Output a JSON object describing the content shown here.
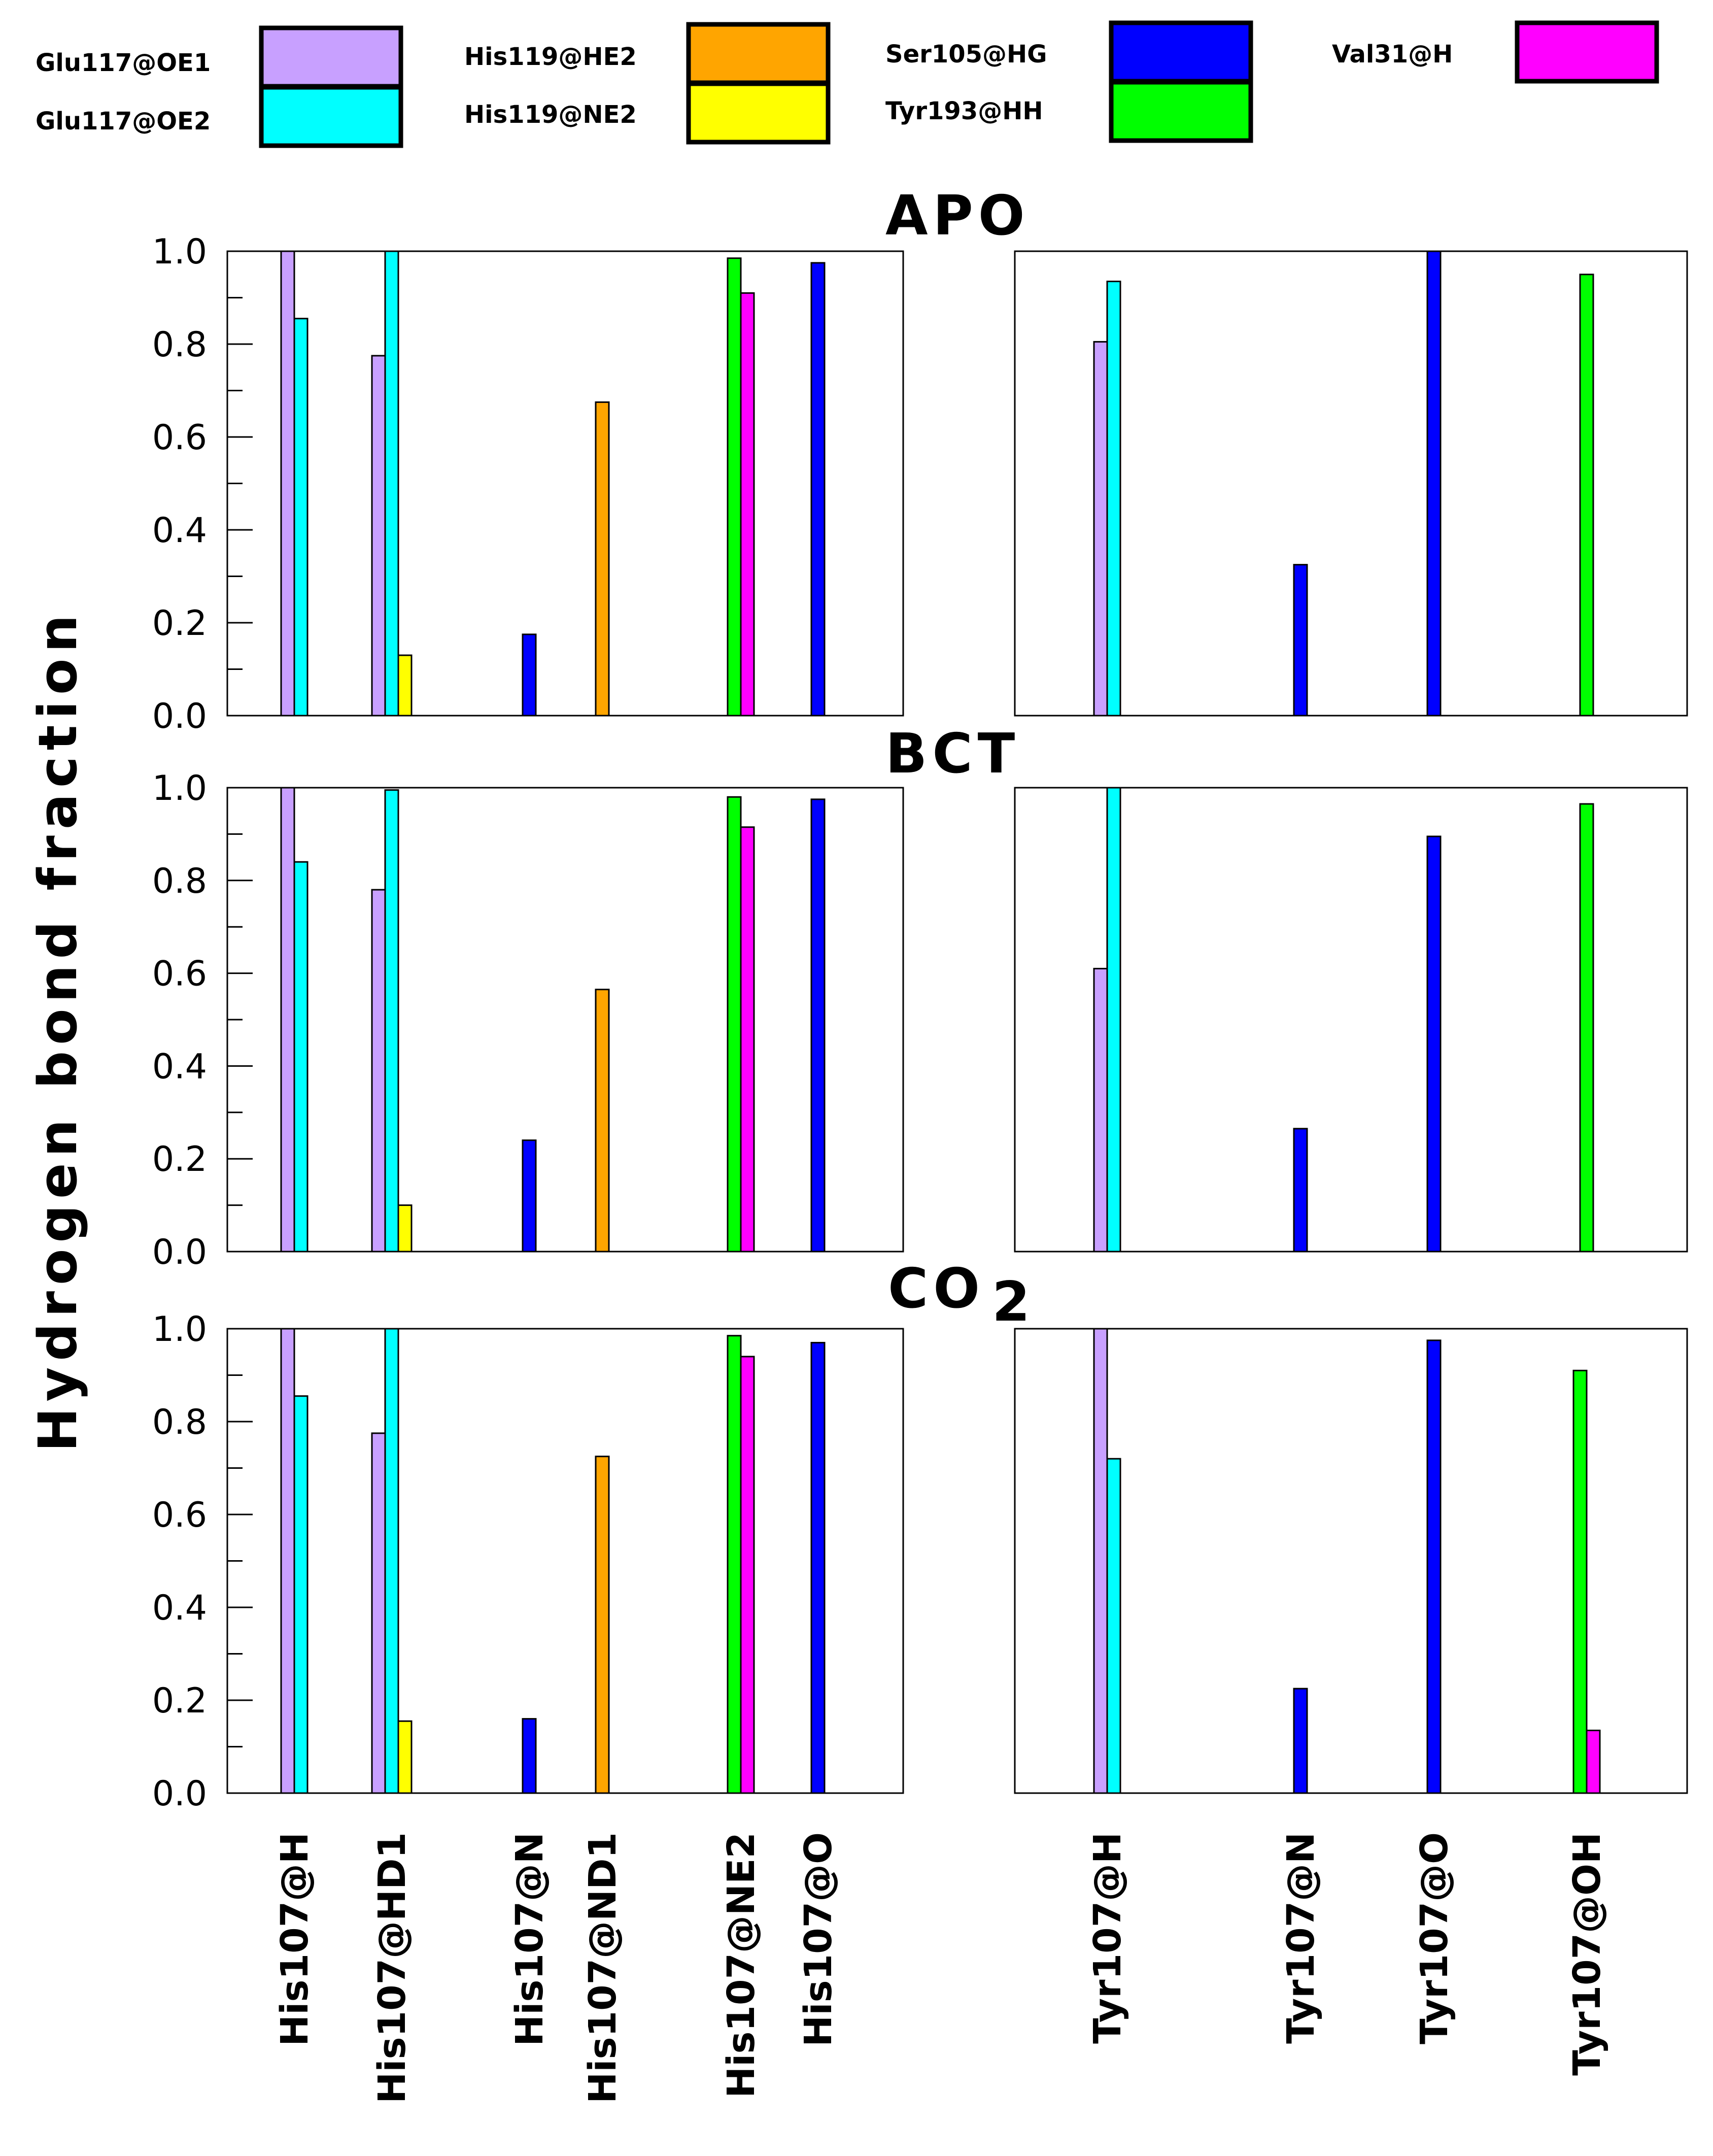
{
  "figure": {
    "ylabel": "Hydrogen bond fraction",
    "ylim": [
      0,
      1.0
    ],
    "yticks": [
      "0.0",
      "0.2",
      "0.4",
      "0.6",
      "0.8",
      "1.0"
    ],
    "categories_left": [
      "His107@H",
      "His107@HD1",
      "His107@N",
      "His107@ND1",
      "His107@NE2",
      "His107@O"
    ],
    "categories_right": [
      "Tyr107@H",
      "Tyr107@N",
      "Tyr107@O",
      "Tyr107@OH"
    ],
    "title_apo": "APO",
    "title_bct": "BCT",
    "title_co2_main": "CO",
    "title_co2_sub": "2"
  },
  "legend": [
    {
      "name": "Glu117@OE1",
      "color": "#c8a0ff"
    },
    {
      "name": "Glu117@OE2",
      "color": "#00ffff"
    },
    {
      "name": "His119@HE2",
      "color": "#ffa500"
    },
    {
      "name": "His119@NE2",
      "color": "#ffff00"
    },
    {
      "name": "Ser105@HG",
      "color": "#0000ff"
    },
    {
      "name": "Tyr193@HH",
      "color": "#00ff00"
    },
    {
      "name": "Val31@H",
      "color": "#ff00ff"
    }
  ],
  "chart_data": [
    {
      "type": "bar",
      "panel": "APO",
      "side": "left",
      "title": "APO",
      "categories": [
        "His107@H",
        "His107@HD1",
        "His107@N",
        "His107@ND1",
        "His107@NE2",
        "His107@O"
      ],
      "ylim": [
        0,
        1.0
      ],
      "bars": [
        {
          "category": "His107@H",
          "series": "Glu117@OE1",
          "value": 1.0
        },
        {
          "category": "His107@H",
          "series": "Glu117@OE2",
          "value": 0.855
        },
        {
          "category": "His107@HD1",
          "series": "Glu117@OE1",
          "value": 0.775
        },
        {
          "category": "His107@HD1",
          "series": "Glu117@OE2",
          "value": 1.0
        },
        {
          "category": "His107@HD1",
          "series": "His119@NE2",
          "value": 0.13
        },
        {
          "category": "His107@N",
          "series": "Ser105@HG",
          "value": 0.175
        },
        {
          "category": "His107@ND1",
          "series": "His119@HE2",
          "value": 0.675
        },
        {
          "category": "His107@NE2",
          "series": "Tyr193@HH",
          "value": 0.985
        },
        {
          "category": "His107@NE2",
          "series": "Val31@H",
          "value": 0.91
        },
        {
          "category": "His107@O",
          "series": "Ser105@HG",
          "value": 0.975
        }
      ]
    },
    {
      "type": "bar",
      "panel": "APO",
      "side": "right",
      "title": "APO",
      "categories": [
        "Tyr107@H",
        "Tyr107@N",
        "Tyr107@O",
        "Tyr107@OH"
      ],
      "ylim": [
        0,
        1.0
      ],
      "bars": [
        {
          "category": "Tyr107@H",
          "series": "Glu117@OE1",
          "value": 0.805
        },
        {
          "category": "Tyr107@H",
          "series": "Glu117@OE2",
          "value": 0.935
        },
        {
          "category": "Tyr107@N",
          "series": "Ser105@HG",
          "value": 0.325
        },
        {
          "category": "Tyr107@O",
          "series": "Ser105@HG",
          "value": 1.0
        },
        {
          "category": "Tyr107@OH",
          "series": "Tyr193@HH",
          "value": 0.95
        }
      ]
    },
    {
      "type": "bar",
      "panel": "BCT",
      "side": "left",
      "title": "BCT",
      "categories": [
        "His107@H",
        "His107@HD1",
        "His107@N",
        "His107@ND1",
        "His107@NE2",
        "His107@O"
      ],
      "ylim": [
        0,
        1.0
      ],
      "bars": [
        {
          "category": "His107@H",
          "series": "Glu117@OE1",
          "value": 1.0
        },
        {
          "category": "His107@H",
          "series": "Glu117@OE2",
          "value": 0.84
        },
        {
          "category": "His107@HD1",
          "series": "Glu117@OE1",
          "value": 0.78
        },
        {
          "category": "His107@HD1",
          "series": "Glu117@OE2",
          "value": 0.995
        },
        {
          "category": "His107@HD1",
          "series": "His119@NE2",
          "value": 0.1
        },
        {
          "category": "His107@N",
          "series": "Ser105@HG",
          "value": 0.24
        },
        {
          "category": "His107@ND1",
          "series": "His119@HE2",
          "value": 0.565
        },
        {
          "category": "His107@NE2",
          "series": "Tyr193@HH",
          "value": 0.98
        },
        {
          "category": "His107@NE2",
          "series": "Val31@H",
          "value": 0.915
        },
        {
          "category": "His107@O",
          "series": "Ser105@HG",
          "value": 0.975
        }
      ]
    },
    {
      "type": "bar",
      "panel": "BCT",
      "side": "right",
      "title": "BCT",
      "categories": [
        "Tyr107@H",
        "Tyr107@N",
        "Tyr107@O",
        "Tyr107@OH"
      ],
      "ylim": [
        0,
        1.0
      ],
      "bars": [
        {
          "category": "Tyr107@H",
          "series": "Glu117@OE1",
          "value": 0.61
        },
        {
          "category": "Tyr107@H",
          "series": "Glu117@OE2",
          "value": 1.0
        },
        {
          "category": "Tyr107@N",
          "series": "Ser105@HG",
          "value": 0.265
        },
        {
          "category": "Tyr107@O",
          "series": "Ser105@HG",
          "value": 0.895
        },
        {
          "category": "Tyr107@OH",
          "series": "Tyr193@HH",
          "value": 0.965
        }
      ]
    },
    {
      "type": "bar",
      "panel": "CO2",
      "side": "left",
      "title": "CO2",
      "categories": [
        "His107@H",
        "His107@HD1",
        "His107@N",
        "His107@ND1",
        "His107@NE2",
        "His107@O"
      ],
      "ylim": [
        0,
        1.0
      ],
      "bars": [
        {
          "category": "His107@H",
          "series": "Glu117@OE1",
          "value": 1.0
        },
        {
          "category": "His107@H",
          "series": "Glu117@OE2",
          "value": 0.855
        },
        {
          "category": "His107@HD1",
          "series": "Glu117@OE1",
          "value": 0.775
        },
        {
          "category": "His107@HD1",
          "series": "Glu117@OE2",
          "value": 1.0
        },
        {
          "category": "His107@HD1",
          "series": "His119@NE2",
          "value": 0.155
        },
        {
          "category": "His107@N",
          "series": "Ser105@HG",
          "value": 0.16
        },
        {
          "category": "His107@ND1",
          "series": "His119@HE2",
          "value": 0.725
        },
        {
          "category": "His107@NE2",
          "series": "Tyr193@HH",
          "value": 0.985
        },
        {
          "category": "His107@NE2",
          "series": "Val31@H",
          "value": 0.94
        },
        {
          "category": "His107@O",
          "series": "Ser105@HG",
          "value": 0.97
        }
      ]
    },
    {
      "type": "bar",
      "panel": "CO2",
      "side": "right",
      "title": "CO2",
      "categories": [
        "Tyr107@H",
        "Tyr107@N",
        "Tyr107@O",
        "Tyr107@OH"
      ],
      "ylim": [
        0,
        1.0
      ],
      "bars": [
        {
          "category": "Tyr107@H",
          "series": "Glu117@OE1",
          "value": 1.0
        },
        {
          "category": "Tyr107@H",
          "series": "Glu117@OE2",
          "value": 0.72
        },
        {
          "category": "Tyr107@N",
          "series": "Ser105@HG",
          "value": 0.225
        },
        {
          "category": "Tyr107@O",
          "series": "Ser105@HG",
          "value": 0.975
        },
        {
          "category": "Tyr107@OH",
          "series": "Tyr193@HH",
          "value": 0.91
        },
        {
          "category": "Tyr107@OH",
          "series": "Val31@H",
          "value": 0.135
        }
      ]
    }
  ]
}
